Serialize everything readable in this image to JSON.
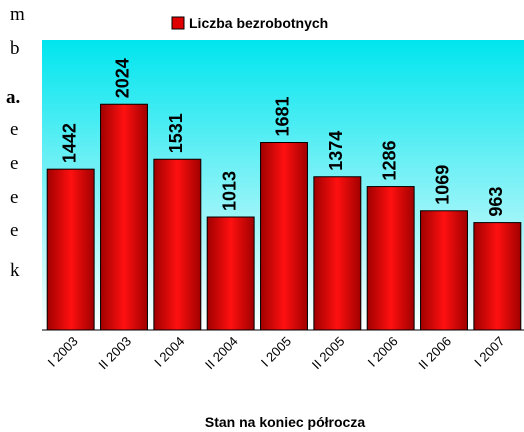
{
  "side_text": [
    "m",
    "b",
    "a.",
    "e",
    "e",
    "e",
    "e",
    "k"
  ],
  "chart_data": {
    "type": "bar",
    "legend": "Liczba bezrobotnych",
    "x_label": "Stan na koniec półrocza",
    "categories": [
      "I 2003",
      "II 2003",
      "I 2004",
      "II 2004",
      "I 2005",
      "II 2005",
      "I 2006",
      "II 2006",
      "I 2007"
    ],
    "values": [
      1442,
      2024,
      1531,
      1013,
      1681,
      1374,
      1286,
      1069,
      963
    ],
    "color": "#e00000",
    "ylim": [
      0,
      2600
    ],
    "grid": false
  }
}
